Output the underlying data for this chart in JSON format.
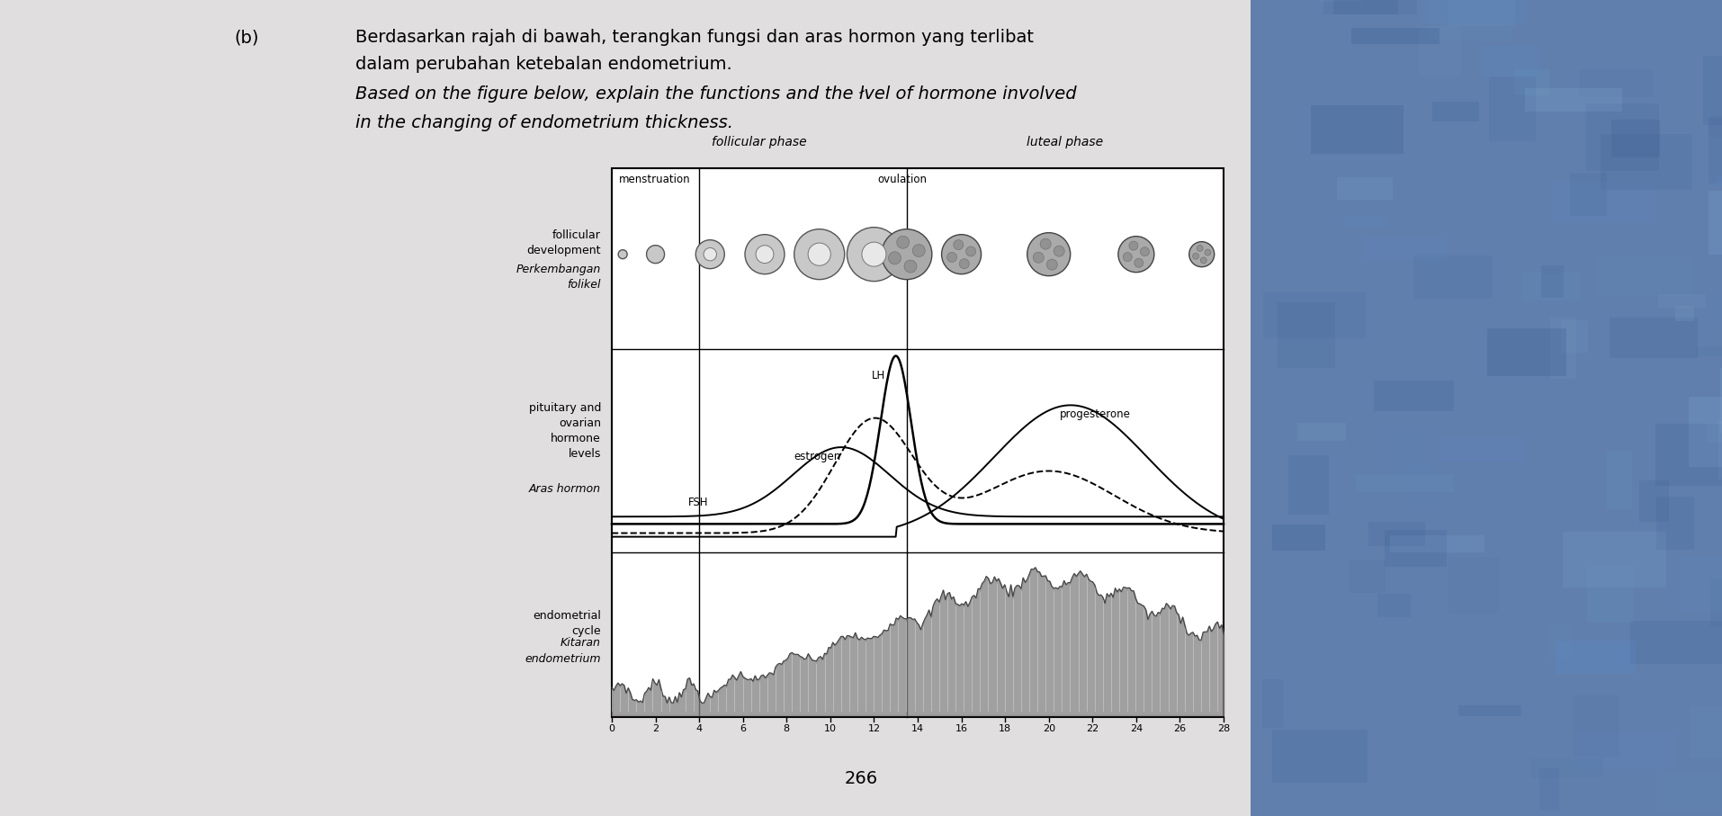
{
  "title_line1": "Berdasarkan rajah di bawah, terangkan fungsi dan aras hormon yang terlibat",
  "title_line2": "dalam perubahan ketebalan endometrium.",
  "title_line3": "Based on the figure below, explain the functions and the łvel of hormone involved",
  "title_line4": "in the changing of endometrium thickness.",
  "page_number": "266",
  "label_b": "(b)",
  "follicular_phase_label": "follicular phase",
  "luteal_phase_label": "luteal phase",
  "menstruation_label": "menstruation",
  "ovulation_label": "ovulation",
  "FSH_label": "FSH",
  "LH_label": "LH",
  "estrogen_label": "estrogen",
  "progesterone_label": "progesterone",
  "lbl_follicular1": "follicular",
  "lbl_follicular2": "development",
  "lbl_follicular3": "Perkembangan",
  "lbl_follicular4": "folikel",
  "lbl_pituitary1": "pituitary and",
  "lbl_pituitary2": "ovarian",
  "lbl_pituitary3": "hormone",
  "lbl_pituitary4": "levels",
  "lbl_pituitary5": "Aras hormon",
  "lbl_endo1": "endometrial",
  "lbl_endo2": "cycle",
  "lbl_endo3": "Kitaran",
  "lbl_endo4": "endometrium",
  "x_ticks": [
    0,
    2,
    4,
    6,
    8,
    10,
    12,
    14,
    16,
    18,
    20,
    22,
    24,
    26,
    28
  ],
  "paper_color": "#e0dede",
  "chart_bg": "#ffffff",
  "fabric_color": "#4a6fa5"
}
